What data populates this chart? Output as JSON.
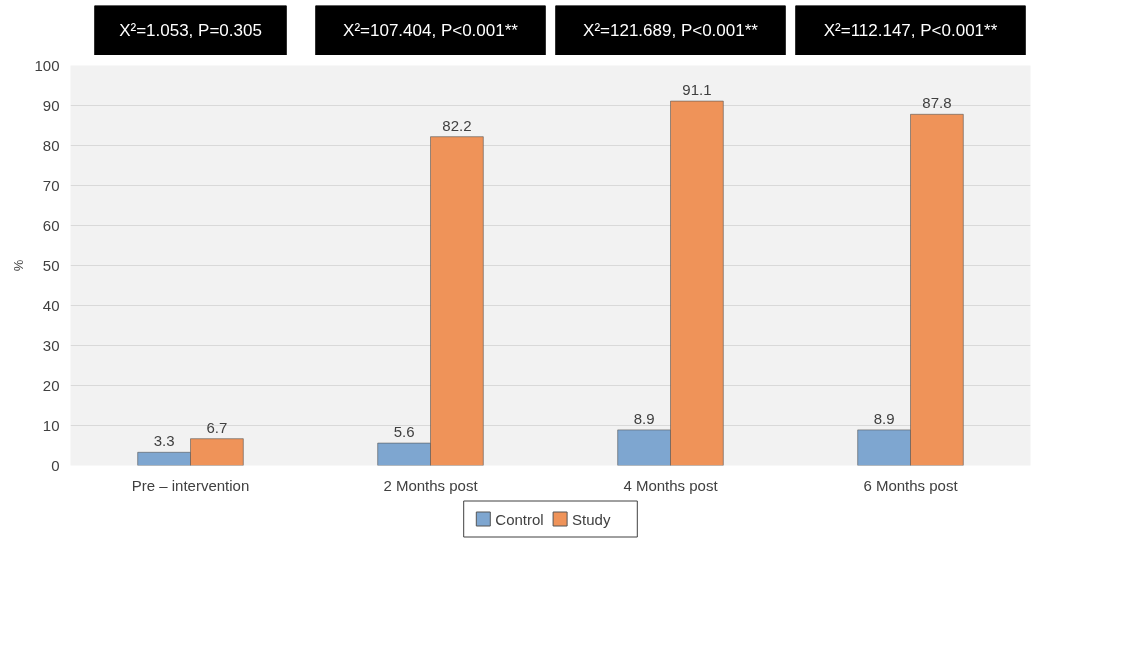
{
  "chart_data": {
    "type": "bar",
    "categories": [
      "Pre – intervention",
      "2 Months post",
      "4 Months post",
      "6 Months post"
    ],
    "series": [
      {
        "name": "Control",
        "color": "#7ea6d0",
        "values": [
          3.3,
          5.6,
          8.9,
          8.9
        ]
      },
      {
        "name": "Study",
        "color": "#ef9359",
        "values": [
          6.7,
          82.2,
          91.1,
          87.8
        ]
      }
    ],
    "ylabel": "%",
    "ylim": [
      0,
      100
    ],
    "yticks": [
      0,
      10,
      20,
      30,
      40,
      50,
      60,
      70,
      80,
      90,
      100
    ],
    "annotations": [
      "X²=1.053, P=0.305",
      "X²=107.404, P<0.001**",
      "X²=121.689, P<0.001**",
      "X²=112.147, P<0.001**"
    ],
    "data_labels": true,
    "grid": "y",
    "legend": "bottom"
  }
}
